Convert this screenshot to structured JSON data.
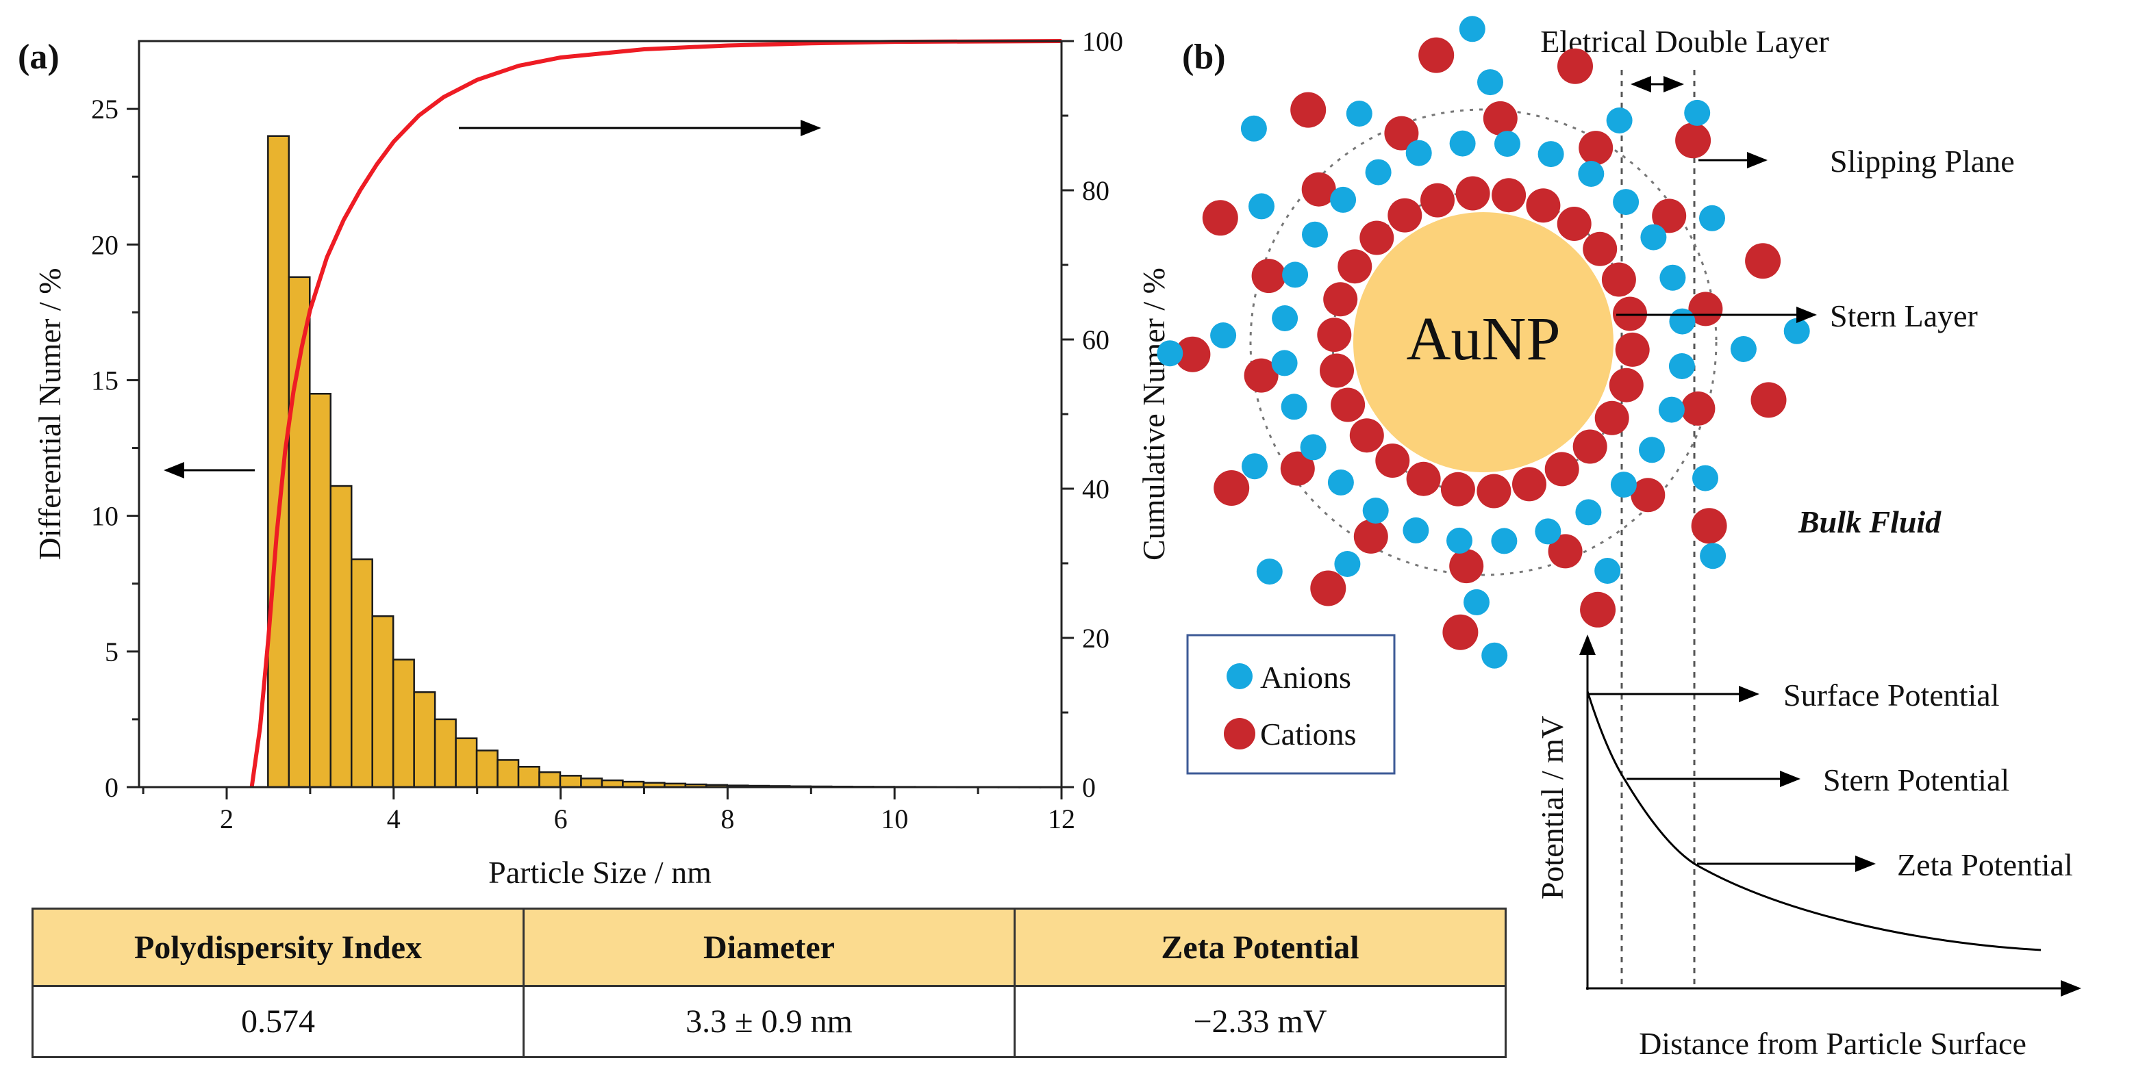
{
  "panel_a": {
    "label": "(a)"
  },
  "panel_b": {
    "label": "(b)",
    "edl_label": "Eletrical Double Layer",
    "slipping_plane": "Slipping Plane",
    "stern_layer": "Stern Layer",
    "particle": "AuNP",
    "bulk_fluid": "Bulk Fluid",
    "legend": {
      "anions": "Anions",
      "cations": "Cations"
    },
    "colors": {
      "anion": "#16a8e0",
      "cation": "#c8282d",
      "particle": "#fcd27a"
    },
    "potential_plot": {
      "ylabel": "Potential / mV",
      "xlabel": "Distance from Particle Surface",
      "surface": "Surface Potential",
      "stern": "Stern Potential",
      "zeta": "Zeta Potential"
    }
  },
  "table": {
    "headers": [
      "Polydispersity Index",
      "Diameter",
      "Zeta Potential"
    ],
    "values": [
      "0.574",
      "3.3 ± 0.9 nm",
      "−2.33 mV"
    ],
    "header_color": "#fbdb8f"
  },
  "chart_data": {
    "type": "bar",
    "xlabel": "Particle Size / nm",
    "ylabel": "Differential Numer / %",
    "y2label": "Cumulative Numer / %",
    "xlim": [
      0.95,
      12
    ],
    "ylim": [
      0,
      27.5
    ],
    "y2lim": [
      0,
      100
    ],
    "xticks": [
      2,
      4,
      6,
      8,
      10,
      12
    ],
    "yticks": [
      0,
      5,
      10,
      15,
      20,
      25
    ],
    "y2ticks": [
      0,
      20,
      40,
      60,
      80,
      100
    ],
    "bar_width": 0.25,
    "bar_color": "#e9b32e",
    "line_color": "#ee1c24",
    "series": [
      {
        "name": "Differential Numer",
        "x": [
          2.62,
          2.87,
          3.12,
          3.37,
          3.62,
          3.87,
          4.12,
          4.37,
          4.62,
          4.87,
          5.12,
          5.37,
          5.62,
          5.87,
          6.12,
          6.37,
          6.62,
          6.87,
          7.12,
          7.37,
          7.62,
          7.87,
          8.12,
          8.37,
          8.62,
          8.87,
          9.12,
          9.37,
          9.62,
          9.87,
          10.12,
          10.37,
          10.62,
          10.87,
          11.12,
          11.37,
          11.62,
          11.87
        ],
        "values": [
          24.0,
          18.8,
          14.5,
          11.1,
          8.4,
          6.3,
          4.7,
          3.5,
          2.5,
          1.8,
          1.35,
          1.0,
          0.75,
          0.55,
          0.42,
          0.32,
          0.25,
          0.2,
          0.16,
          0.13,
          0.1,
          0.08,
          0.06,
          0.05,
          0.04,
          0.03,
          0.025,
          0.02,
          0.016,
          0.013,
          0.01,
          0.008,
          0.006,
          0.005,
          0.004,
          0.003,
          0.003,
          0.002
        ]
      },
      {
        "name": "Cumulative Numer",
        "axis": "right",
        "x": [
          2.3,
          2.4,
          2.5,
          2.6,
          2.7,
          2.8,
          2.9,
          3.0,
          3.2,
          3.4,
          3.6,
          3.8,
          4.0,
          4.3,
          4.6,
          5.0,
          5.5,
          6.0,
          7.0,
          8.0,
          9.0,
          10.0,
          12.0
        ],
        "values": [
          0,
          8,
          20,
          34,
          45,
          53,
          59,
          64,
          71,
          76,
          80,
          83.5,
          86.5,
          90,
          92.5,
          94.8,
          96.7,
          97.8,
          98.9,
          99.4,
          99.7,
          99.9,
          100
        ]
      }
    ]
  }
}
